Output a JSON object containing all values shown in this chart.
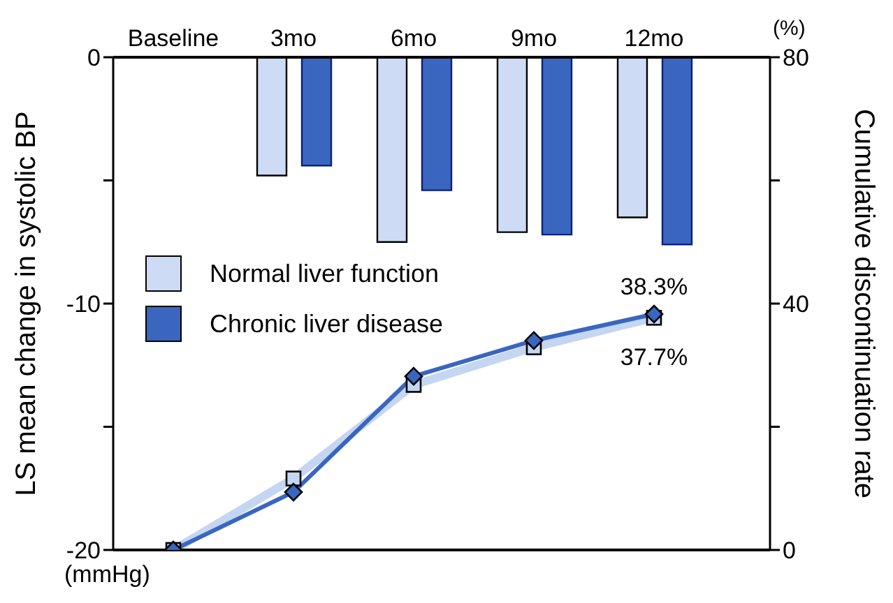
{
  "chart_data": {
    "type": "bar",
    "categories": [
      "Baseline",
      "3mo",
      "6mo",
      "9mo",
      "12mo"
    ],
    "ylabel": "LS mean change in systolic BP",
    "y2label": "Cumulative discontinuation rate",
    "ylim": [
      -20,
      0
    ],
    "yticks": [
      -20,
      {
        "value": -15,
        "label": null
      },
      -10,
      {
        "value": -5,
        "label": null
      },
      0
    ],
    "y2lim": [
      0,
      80
    ],
    "y2ticks": [
      0,
      {
        "value": 20,
        "label": null
      },
      40,
      {
        "value": 60,
        "label": null
      },
      80
    ],
    "annotations": [
      "(mmHg)",
      "(%)"
    ],
    "legend": "left",
    "series": [
      {
        "name": "Normal liver function",
        "type": "bar",
        "color": "#cddcf4",
        "values": [
          null,
          -4.8,
          -7.5,
          -7.1,
          -6.5
        ]
      },
      {
        "name": "Chronic liver disease",
        "type": "bar",
        "color": "#3a66c0",
        "values": [
          null,
          -4.4,
          -5.4,
          -7.2,
          -7.6
        ]
      },
      {
        "type": "line",
        "axis": "y2",
        "color": "#c5d6f2",
        "marker": "square",
        "values": [
          0,
          11.6,
          26.8,
          32.9,
          37.7
        ],
        "value_labels": [
          null,
          null,
          null,
          null,
          "37.7%"
        ]
      },
      {
        "type": "line",
        "axis": "y2",
        "color": "#3a66c0",
        "marker": "diamond",
        "values": [
          0,
          9.4,
          28.2,
          34.0,
          38.3
        ],
        "value_labels": [
          null,
          null,
          null,
          null,
          "38.3%"
        ]
      }
    ]
  }
}
